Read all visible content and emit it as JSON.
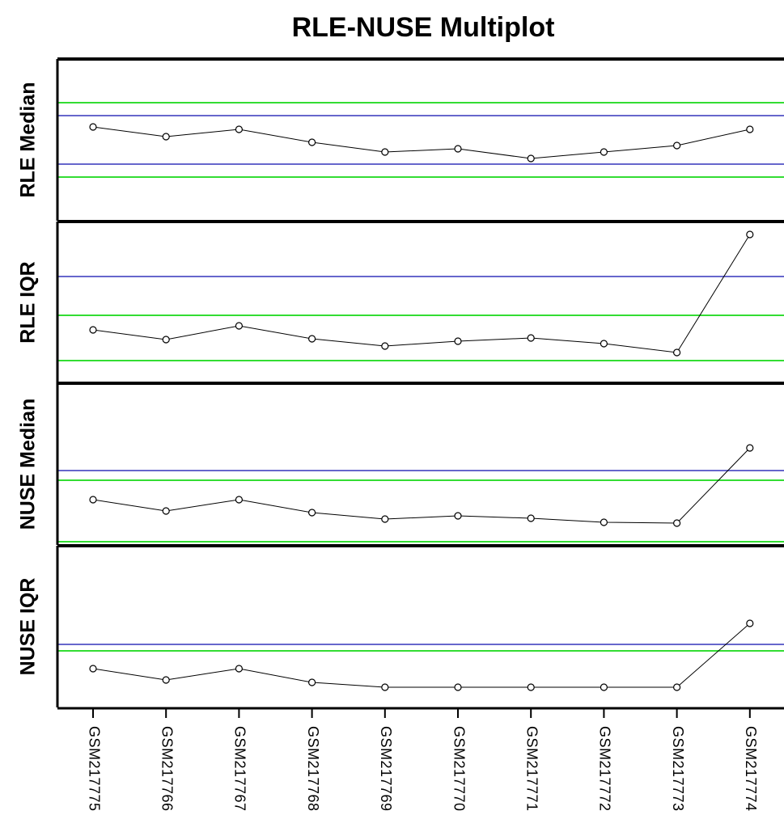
{
  "chart_data": {
    "type": "line",
    "title": "RLE-NUSE Multiplot",
    "categories": [
      "GSM217775",
      "GSM217766",
      "GSM217767",
      "GSM217768",
      "GSM217769",
      "GSM217770",
      "GSM217771",
      "GSM217772",
      "GSM217773",
      "GSM217774"
    ],
    "grid": false,
    "panels": [
      {
        "ylabel": "RLE Median",
        "values": [
          0.58,
          0.52,
          0.565,
          0.485,
          0.425,
          0.445,
          0.385,
          0.425,
          0.465,
          0.565
        ],
        "ylim": [
          0,
          1
        ],
        "reference_lines": {
          "inner": [
            0.65,
            0.35
          ],
          "outer": [
            0.73,
            0.27
          ]
        }
      },
      {
        "ylabel": "RLE IQR",
        "values": [
          0.33,
          0.27,
          0.355,
          0.275,
          0.23,
          0.26,
          0.28,
          0.245,
          0.19,
          0.92
        ],
        "ylim": [
          0,
          1
        ],
        "reference_lines": {
          "inner": [
            0.66
          ],
          "outer": [
            0.42,
            0.14
          ]
        }
      },
      {
        "ylabel": "NUSE Median",
        "values": [
          0.28,
          0.21,
          0.28,
          0.2,
          0.16,
          0.18,
          0.165,
          0.14,
          0.135,
          0.6
        ],
        "ylim": [
          0,
          1
        ],
        "reference_lines": {
          "inner": [
            0.46
          ],
          "outer": [
            0.4,
            0.02
          ]
        }
      },
      {
        "ylabel": "NUSE IQR",
        "values": [
          0.24,
          0.17,
          0.24,
          0.155,
          0.125,
          0.125,
          0.125,
          0.125,
          0.125,
          0.52
        ],
        "ylim": [
          0,
          1
        ],
        "reference_lines": {
          "inner": [
            0.39
          ],
          "outer": [
            0.35
          ]
        }
      }
    ],
    "colors": {
      "inner_reference": "#6666cc",
      "outer_reference": "#33dd33",
      "series": "#000000",
      "marker_fill": "#ffffff"
    }
  }
}
